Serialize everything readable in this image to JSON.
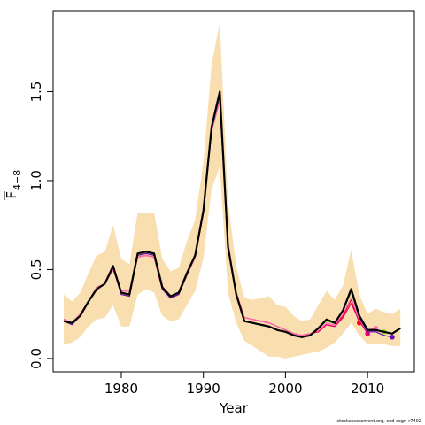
{
  "chart_data": {
    "type": "line",
    "xlabel": "Year",
    "ylabel": "F",
    "ylabel_subscript": "4−8",
    "footnote": "stockassessment.org, cod-segr, r7402",
    "xlim": [
      1971.7,
      2015.7
    ],
    "ylim": [
      -0.075,
      1.955
    ],
    "xticks": [
      1980,
      1990,
      2000,
      2010
    ],
    "yticks": [
      {
        "value": 0,
        "label": "0.0"
      },
      0.5,
      {
        "value": 1,
        "label": "1.0"
      },
      1.5
    ],
    "band_color": "#f9deb0",
    "x": [
      1973,
      1974,
      1975,
      1976,
      1977,
      1978,
      1979,
      1980,
      1981,
      1982,
      1983,
      1984,
      1985,
      1986,
      1987,
      1988,
      1989,
      1990,
      1991,
      1992,
      1993,
      1994,
      1995,
      1996,
      1997,
      1998,
      1999,
      2000,
      2001,
      2002,
      2003,
      2004,
      2005,
      2006,
      2007,
      2008,
      2009,
      2010,
      2011,
      2012,
      2013,
      2014
    ],
    "ci_upper": [
      0.36,
      0.32,
      0.37,
      0.48,
      0.58,
      0.6,
      0.75,
      0.56,
      0.53,
      0.82,
      0.82,
      0.82,
      0.56,
      0.49,
      0.51,
      0.66,
      0.78,
      1.1,
      1.65,
      1.89,
      0.88,
      0.52,
      0.34,
      0.33,
      0.34,
      0.35,
      0.3,
      0.29,
      0.24,
      0.21,
      0.22,
      0.3,
      0.38,
      0.33,
      0.41,
      0.61,
      0.36,
      0.25,
      0.28,
      0.26,
      0.25,
      0.28
    ],
    "ci_lower": [
      0.08,
      0.09,
      0.12,
      0.18,
      0.22,
      0.23,
      0.3,
      0.18,
      0.18,
      0.36,
      0.39,
      0.37,
      0.24,
      0.21,
      0.22,
      0.3,
      0.38,
      0.56,
      0.95,
      1.08,
      0.37,
      0.2,
      0.1,
      0.07,
      0.04,
      0.01,
      0.01,
      0.0,
      0.01,
      0.02,
      0.03,
      0.04,
      0.06,
      0.09,
      0.14,
      0.2,
      0.13,
      0.08,
      0.08,
      0.08,
      0.07,
      0.07
    ],
    "series": [
      {
        "color": "#ff0000",
        "values": [
          0.22,
          0.2,
          0.25,
          0.32,
          0.4,
          0.42,
          0.5,
          0.38,
          0.38,
          0.57,
          0.58,
          0.57,
          0.39,
          0.34,
          0.36,
          0.47,
          0.57,
          0.82,
          1.28,
          1.45,
          0.62,
          0.37,
          0.23,
          0.22,
          0.21,
          0.2,
          0.18,
          0.16,
          0.14,
          0.13,
          0.14,
          0.15,
          0.19,
          0.18,
          0.24,
          0.33,
          0.2,
          null,
          null,
          null,
          null,
          null
        ]
      },
      {
        "color": "#e6007e",
        "values": [
          0.22,
          0.2,
          0.25,
          0.32,
          0.4,
          0.42,
          0.5,
          0.38,
          0.38,
          0.57,
          0.58,
          0.57,
          0.39,
          0.34,
          0.36,
          0.47,
          0.57,
          0.82,
          1.28,
          1.45,
          0.62,
          0.37,
          0.23,
          0.22,
          0.21,
          0.2,
          0.18,
          0.16,
          0.14,
          0.13,
          0.14,
          0.15,
          0.19,
          0.18,
          0.23,
          0.31,
          0.21,
          0.14,
          null,
          null,
          null,
          null
        ]
      },
      {
        "color": "#ff6eb4",
        "values": [
          0.22,
          0.2,
          0.25,
          0.32,
          0.4,
          0.42,
          0.5,
          0.38,
          0.38,
          0.57,
          0.58,
          0.57,
          0.39,
          0.34,
          0.36,
          0.47,
          0.57,
          0.82,
          1.28,
          1.45,
          0.62,
          0.37,
          0.23,
          0.22,
          0.21,
          0.2,
          0.18,
          0.16,
          0.14,
          0.13,
          0.14,
          0.16,
          0.2,
          0.19,
          0.25,
          0.34,
          0.22,
          0.16,
          0.17,
          null,
          null,
          null
        ]
      },
      {
        "color": "#9acd32",
        "values": [
          0.21,
          0.19,
          0.24,
          0.32,
          0.39,
          0.42,
          0.51,
          0.36,
          0.35,
          0.58,
          0.59,
          0.58,
          0.39,
          0.34,
          0.36,
          0.47,
          0.58,
          0.83,
          1.29,
          1.48,
          0.63,
          0.36,
          0.21,
          0.2,
          0.19,
          0.18,
          0.16,
          0.15,
          0.13,
          0.12,
          0.13,
          0.17,
          0.21,
          0.2,
          0.27,
          0.37,
          0.23,
          0.16,
          0.16,
          0.15,
          null,
          null
        ]
      },
      {
        "color": "#6a0dad",
        "values": [
          0.21,
          0.19,
          0.24,
          0.32,
          0.39,
          0.42,
          0.51,
          0.36,
          0.35,
          0.58,
          0.59,
          0.58,
          0.39,
          0.34,
          0.36,
          0.47,
          0.58,
          0.83,
          1.29,
          1.48,
          0.63,
          0.36,
          0.21,
          0.2,
          0.19,
          0.18,
          0.16,
          0.15,
          0.13,
          0.12,
          0.13,
          0.17,
          0.22,
          0.2,
          0.27,
          0.38,
          0.23,
          0.15,
          0.15,
          0.13,
          0.12,
          null
        ]
      },
      {
        "color": "#000000",
        "values": [
          0.21,
          0.2,
          0.24,
          0.32,
          0.39,
          0.42,
          0.52,
          0.37,
          0.36,
          0.59,
          0.6,
          0.59,
          0.4,
          0.35,
          0.37,
          0.48,
          0.58,
          0.83,
          1.3,
          1.5,
          0.63,
          0.36,
          0.21,
          0.2,
          0.19,
          0.18,
          0.16,
          0.15,
          0.13,
          0.12,
          0.13,
          0.17,
          0.22,
          0.2,
          0.27,
          0.39,
          0.24,
          0.16,
          0.16,
          0.15,
          0.14,
          0.17
        ]
      }
    ]
  }
}
